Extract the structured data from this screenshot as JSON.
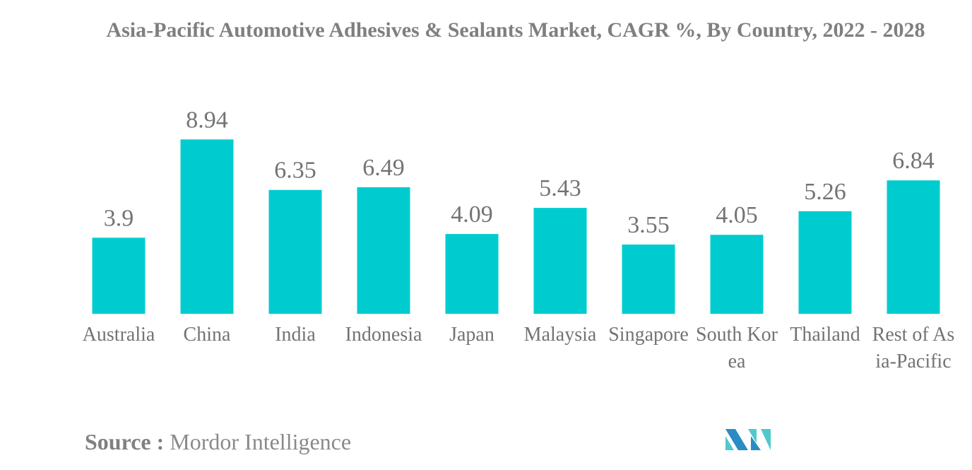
{
  "chart_data": {
    "type": "bar",
    "title": "Asia-Pacific Automotive Adhesives & Sealants Market, CAGR %, By Country, 2022 - 2028",
    "categories": [
      "Australia",
      "China",
      "India",
      "Indonesia",
      "Japan",
      "Malaysia",
      "Singapore",
      "South Korea",
      "Thailand",
      "Rest of Asia-Pacific"
    ],
    "values": [
      3.9,
      8.94,
      6.35,
      6.49,
      4.09,
      5.43,
      3.55,
      4.05,
      5.26,
      6.84
    ],
    "data_labels": [
      "3.9",
      "8.94",
      "6.35",
      "6.49",
      "4.09",
      "5.43",
      "3.55",
      "4.05",
      "5.26",
      "6.84"
    ],
    "xlabel": "",
    "ylabel": "",
    "ylim": [
      0,
      9
    ],
    "grid": false,
    "bar_color": "#00ccd0"
  },
  "source": {
    "label": "Source :",
    "value": "Mordor Intelligence"
  },
  "logo": {
    "name": "mordor-intelligence-logo",
    "colors": [
      "#2b8cc4",
      "#4fc9cc"
    ]
  }
}
